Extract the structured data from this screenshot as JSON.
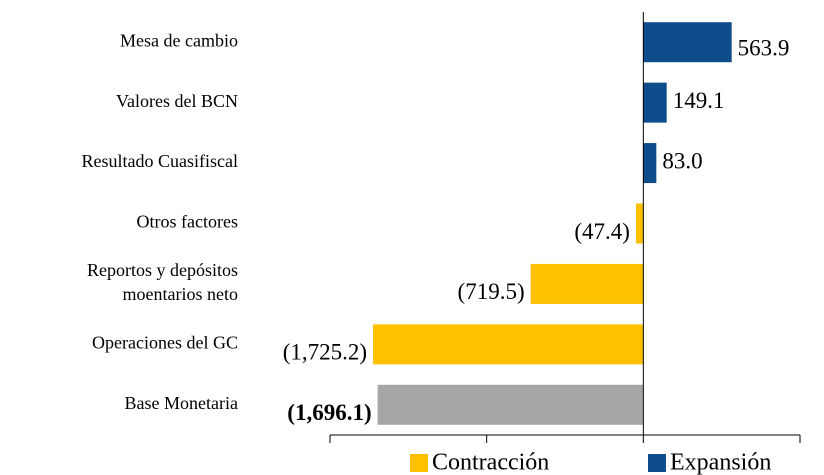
{
  "chart_data": {
    "type": "hbar",
    "categories": [
      "Mesa de cambio",
      "Valores del BCN",
      "Resultado Cuasifiscal",
      "Otros factores",
      [
        "Reportos y depósitos",
        "moentarios neto"
      ],
      "Operaciones del GC",
      "Base Monetaria"
    ],
    "values": [
      563.9,
      149.1,
      83.0,
      -47.4,
      -719.5,
      -1725.2,
      -1696.1
    ],
    "value_labels": [
      "563.9",
      "149.1",
      "83.0",
      "(47.4)",
      "(719.5)",
      "(1,725.2)",
      "(1,696.1)"
    ],
    "value_label_bold": [
      false,
      false,
      false,
      false,
      false,
      false,
      true
    ],
    "colors": [
      "#0f4c8c",
      "#0f4c8c",
      "#0f4c8c",
      "#ffc000",
      "#ffc000",
      "#ffc000",
      "#a6a6a6"
    ],
    "xlim": [
      -2000,
      1000
    ],
    "xticks": [
      -2000,
      -1000,
      0,
      1000
    ],
    "legend": [
      {
        "name": "Contracción",
        "color": "#ffc000"
      },
      {
        "name": "Expansión",
        "color": "#0f4c8c"
      }
    ]
  }
}
